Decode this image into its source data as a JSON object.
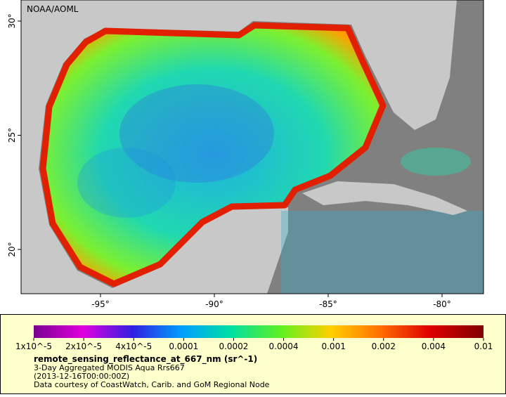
{
  "map": {
    "source_label": "NOAA/AOML",
    "lon_ticks": [
      {
        "value": -95,
        "label": "-95°"
      },
      {
        "value": -90,
        "label": "-90°"
      },
      {
        "value": -85,
        "label": "-85°"
      },
      {
        "value": -80,
        "label": "-80°"
      }
    ],
    "lat_ticks": [
      {
        "value": 30,
        "label": "30°"
      },
      {
        "value": 25,
        "label": "25°"
      },
      {
        "value": 20,
        "label": "20°"
      }
    ]
  },
  "legend": {
    "ticks": [
      "1x10^-5",
      "2x10^-5",
      "4x10^-5",
      "0.0001",
      "0.0002",
      "0.0004",
      "0.001",
      "0.002",
      "0.004",
      "0.01"
    ],
    "title": "remote_sensing_reflectance_at_667_nm (sr^-1)",
    "lines": [
      "3-Day Aggregated MODIS Aqua Rrs667",
      "(2013-12-16T00:00:00Z)",
      "Data courtesy of CoastWatch, Carib. and GoM Regional Node"
    ]
  }
}
